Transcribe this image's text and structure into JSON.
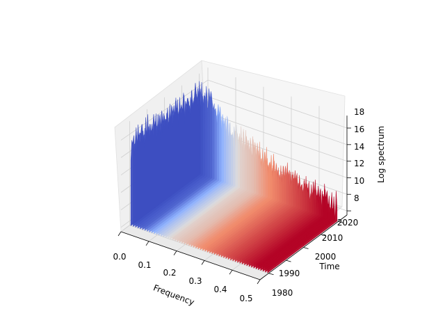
{
  "chart_data": {
    "type": "3d-waterfall",
    "title": "",
    "xlabel": "Frequency",
    "ylabel": "Time",
    "zlabel": "Log spectrum",
    "colormap": "coolwarm",
    "xlim": [
      0.0,
      0.5
    ],
    "ylim": [
      1975,
      2025
    ],
    "zlim": [
      7.5,
      19.5
    ],
    "x_ticks": [
      "0.0",
      "0.1",
      "0.2",
      "0.3",
      "0.4",
      "0.5"
    ],
    "y_ticks": [
      "1980",
      "1990",
      "2000",
      "2010",
      "2020"
    ],
    "z_ticks": [
      "8",
      "10",
      "12",
      "14",
      "16",
      "18"
    ],
    "grid": true,
    "pane_color": "#f2f2f2",
    "series_profile": {
      "frequency": [
        0.0,
        0.05,
        0.1,
        0.15,
        0.2,
        0.25,
        0.3,
        0.35,
        0.4,
        0.45,
        0.5
      ],
      "mean_log_spectrum": [
        17.0,
        16.5,
        14.5,
        13.0,
        12.5,
        11.5,
        11.0,
        10.5,
        10.0,
        9.5,
        9.5
      ],
      "year_range": [
        1980,
        2020
      ],
      "color_ramp": [
        "#b40426",
        "#f08a6b",
        "#dddcdc",
        "#8db0fe",
        "#3b4cc0"
      ]
    }
  }
}
